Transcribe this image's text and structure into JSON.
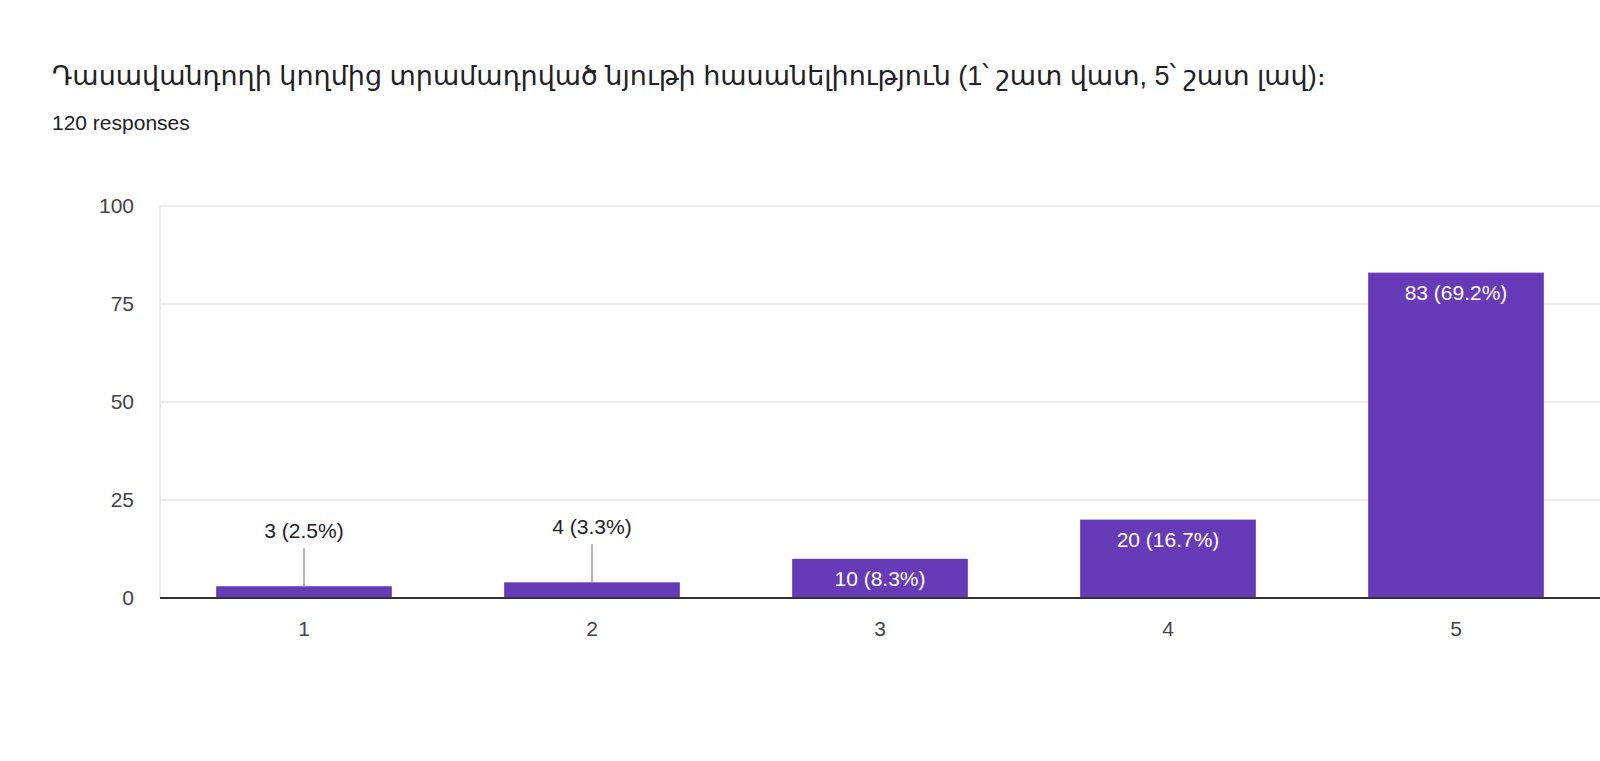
{
  "chart_data": {
    "type": "bar",
    "title": "Դասավանդողի կողմից տրամադրված նյութի հասանելիություն (1՝ շատ վատ, 5՝ շատ լավ)։",
    "subtitle": "120 responses",
    "categories": [
      "1",
      "2",
      "3",
      "4",
      "5"
    ],
    "values": [
      3,
      4,
      10,
      20,
      83
    ],
    "value_labels": [
      "3 (2.5%)",
      "4 (3.3%)",
      "10 (8.3%)",
      "20 (16.7%)",
      "83 (69.2%)"
    ],
    "data_labels": true,
    "color": "#673ab7",
    "ylim": [
      0,
      100
    ],
    "yticks": [
      0,
      25,
      50,
      75,
      100
    ],
    "grid": true
  }
}
